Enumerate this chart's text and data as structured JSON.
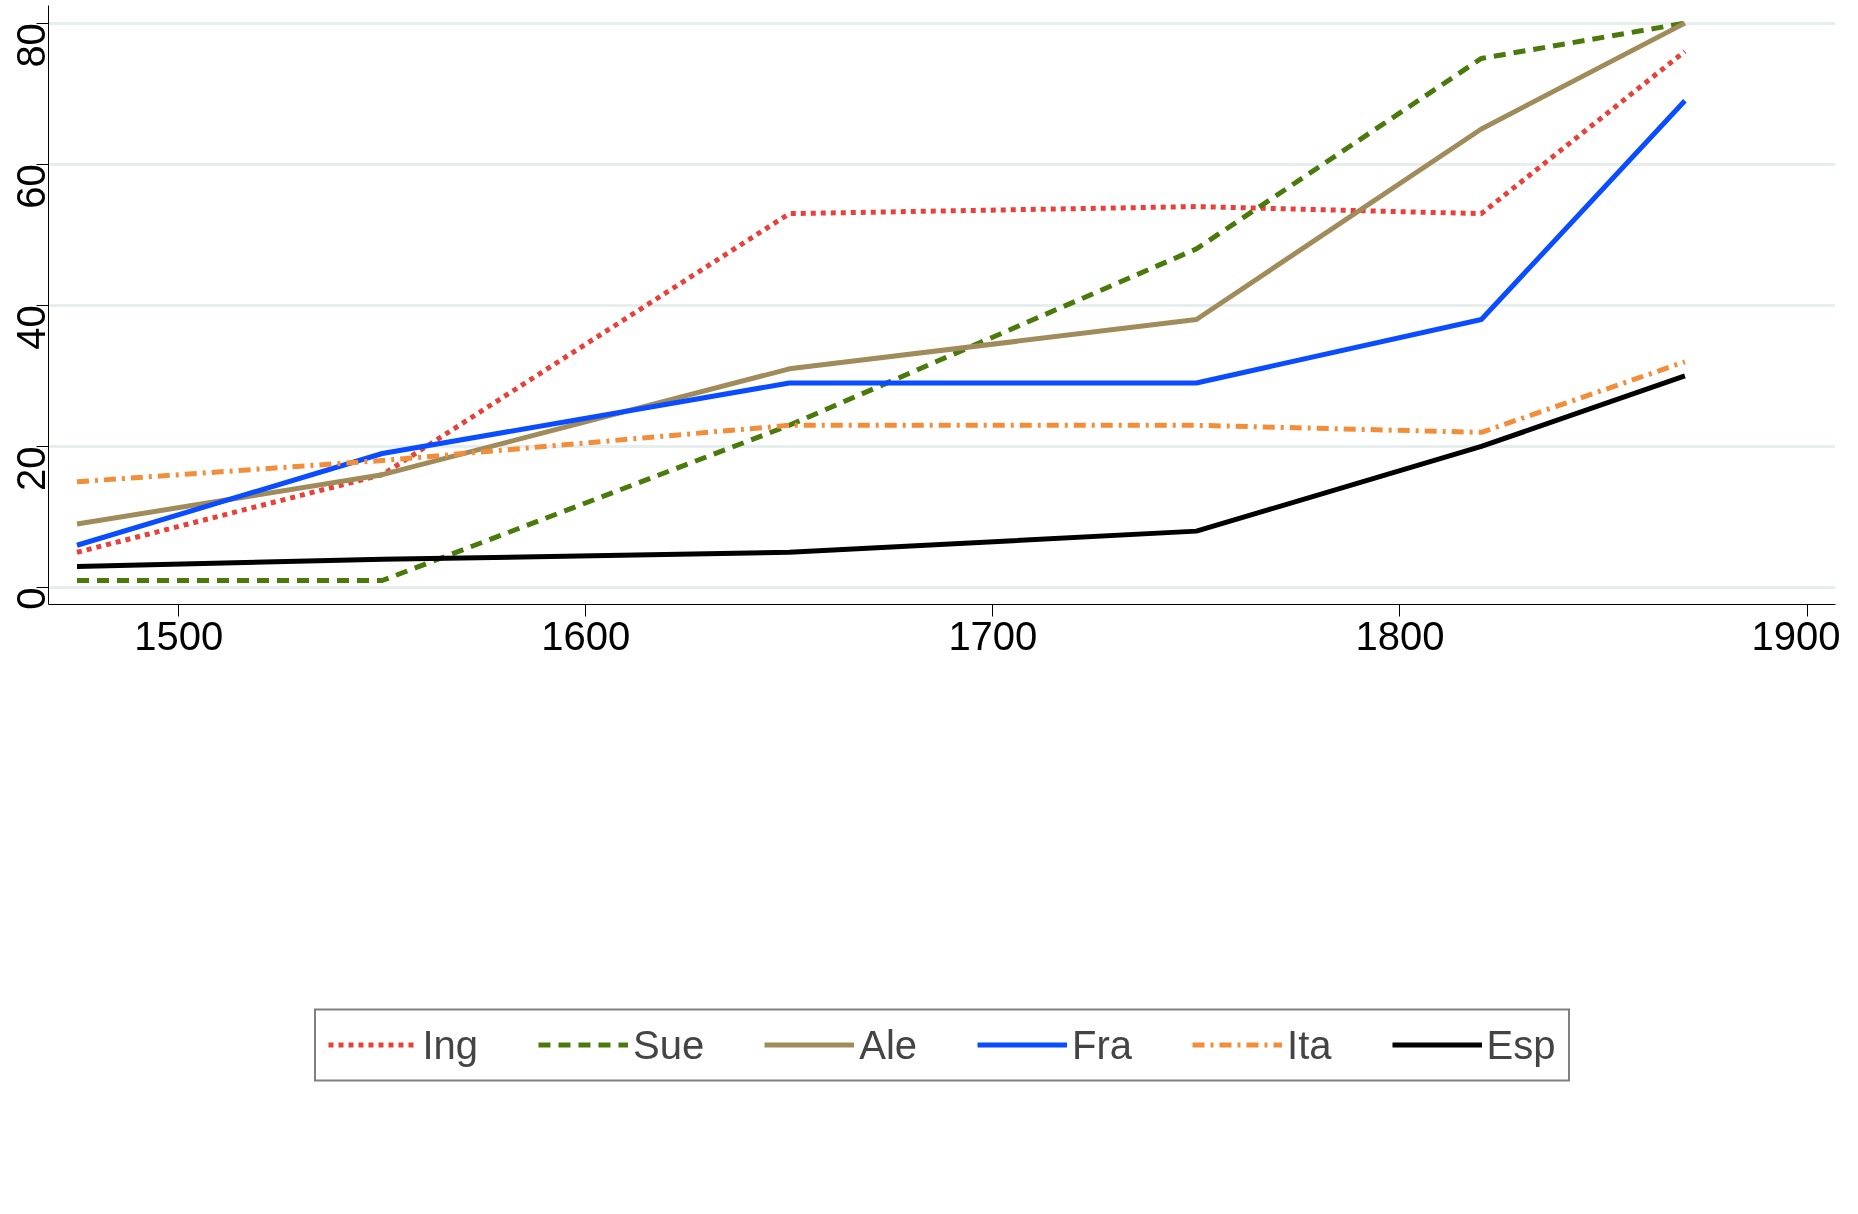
{
  "chart_data": {
    "type": "line",
    "x": [
      1475,
      1550,
      1650,
      1750,
      1820,
      1870
    ],
    "series": [
      {
        "name": "Ing",
        "color": "#e8413a",
        "line_style": "dotted",
        "values": [
          5,
          16,
          53,
          54,
          53,
          76
        ]
      },
      {
        "name": "Sue",
        "color": "#4a7a0c",
        "line_style": "dashed",
        "values": [
          1,
          1,
          23,
          48,
          75,
          80
        ]
      },
      {
        "name": "Ale",
        "color": "#a08c5b",
        "line_style": "solid",
        "values": [
          9,
          16,
          31,
          38,
          65,
          80
        ]
      },
      {
        "name": "Fra",
        "color": "#0a4cff",
        "line_style": "solid",
        "values": [
          6,
          19,
          29,
          29,
          38,
          69
        ]
      },
      {
        "name": "Ita",
        "color": "#f28e3a",
        "line_style": "dashdot",
        "values": [
          15,
          18,
          23,
          23,
          22,
          32
        ]
      },
      {
        "name": "Esp",
        "color": "#000000",
        "line_style": "solid",
        "values": [
          3,
          4,
          5,
          8,
          20,
          30
        ]
      }
    ],
    "xlim": [
      1468,
      1907
    ],
    "ylim": [
      -2.4,
      82.5
    ],
    "xticks": [
      1500,
      1600,
      1700,
      1800,
      1900
    ],
    "yticks": [
      0,
      20,
      40,
      60,
      80
    ],
    "grid": "y",
    "legend": "bottom",
    "marker": "none"
  }
}
